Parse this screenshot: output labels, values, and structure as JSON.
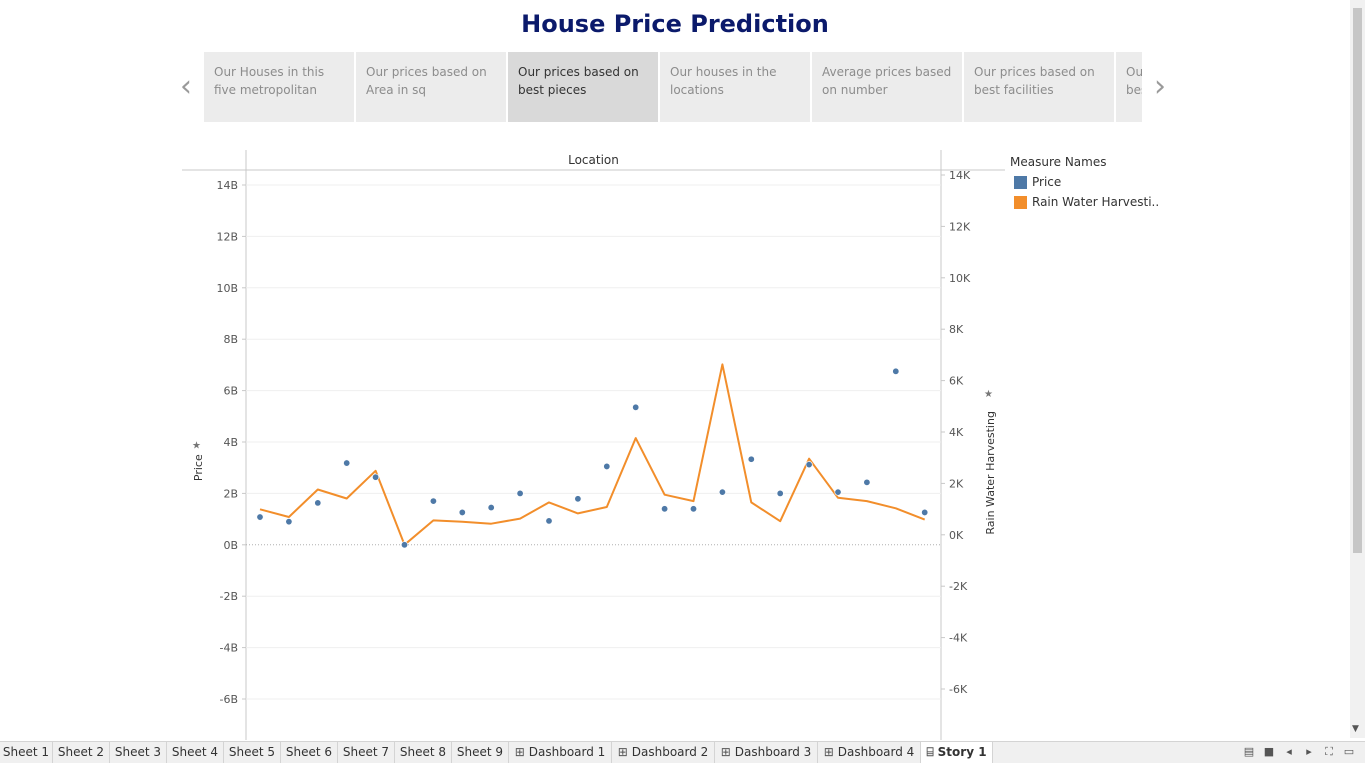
{
  "story": {
    "title": "House Price Prediction",
    "captions": [
      "Our Houses in this five metropolitan",
      "Our prices based on Area in sq",
      "Our prices based on best pieces",
      "Our houses in the locations",
      "Average prices based on number",
      "Our prices based on best facilities",
      "Our prices based on best"
    ],
    "active_caption": 2,
    "prev_icon": "chevron-left-icon",
    "next_icon": "chevron-right-icon"
  },
  "chart_data": {
    "type": "line",
    "title": "",
    "column_header": "Location",
    "left_axis": {
      "label": "Price",
      "ticks": [
        "14B",
        "12B",
        "10B",
        "8B",
        "6B",
        "4B",
        "2B",
        "0B",
        "-2B",
        "-4B",
        "-6B"
      ],
      "tick_values": [
        14,
        12,
        10,
        8,
        6,
        4,
        2,
        0,
        -2,
        -4,
        -6
      ],
      "range": [
        -6.6,
        14.8
      ],
      "unit_note": "billions"
    },
    "right_axis": {
      "label": "Rain Water Harvesting",
      "ticks": [
        "14K",
        "12K",
        "10K",
        "8K",
        "6K",
        "4K",
        "2K",
        "0K",
        "-2K",
        "-4K",
        "-6K"
      ],
      "tick_values": [
        14,
        12,
        10,
        8,
        6,
        4,
        2,
        0,
        -2,
        -4,
        -6
      ],
      "range": [
        -6.6,
        14.8
      ],
      "unit_note": "thousands"
    },
    "series": [
      {
        "name": "Price",
        "mark": "scatter",
        "color": "#4e79a7",
        "values": [
          1.08,
          0.9,
          1.63,
          3.18,
          2.63,
          0.0,
          1.7,
          1.26,
          1.45,
          2.0,
          0.93,
          1.79,
          3.05,
          5.35,
          1.4,
          1.4,
          2.05,
          3.33,
          2.0,
          3.12,
          2.05,
          2.43,
          6.75,
          1.26
        ]
      },
      {
        "name": "Rain Water Harvesti..",
        "mark": "line",
        "color": "#f28e2b",
        "values": [
          1.38,
          1.08,
          2.15,
          1.8,
          2.88,
          0.0,
          0.95,
          0.9,
          0.82,
          1.02,
          1.65,
          1.22,
          1.47,
          4.15,
          1.95,
          1.7,
          7.02,
          1.65,
          0.92,
          3.35,
          1.83,
          1.7,
          1.42,
          0.98
        ]
      }
    ],
    "legend": {
      "title": "Measure Names",
      "placement": "right"
    },
    "grid": true
  },
  "tabs": [
    {
      "label": "Sheet 1",
      "icon": ""
    },
    {
      "label": "Sheet 2",
      "icon": ""
    },
    {
      "label": "Sheet 3",
      "icon": ""
    },
    {
      "label": "Sheet 4",
      "icon": ""
    },
    {
      "label": "Sheet 5",
      "icon": ""
    },
    {
      "label": "Sheet 6",
      "icon": ""
    },
    {
      "label": "Sheet 7",
      "icon": ""
    },
    {
      "label": "Sheet 8",
      "icon": ""
    },
    {
      "label": "Sheet 9",
      "icon": ""
    },
    {
      "label": "Dashboard 1",
      "icon": "dashboard-grid-icon"
    },
    {
      "label": "Dashboard 2",
      "icon": "dashboard-grid-icon"
    },
    {
      "label": "Dashboard 3",
      "icon": "dashboard-grid-icon"
    },
    {
      "label": "Dashboard 4",
      "icon": "dashboard-grid-icon"
    },
    {
      "label": "Story 1",
      "icon": "story-book-icon"
    }
  ],
  "active_tab": 13,
  "tab_controls": [
    "grid-view-icon",
    "fill-square-icon",
    "prev-sheet-icon",
    "next-sheet-icon",
    "fullscreen-icon",
    "present-icon"
  ]
}
